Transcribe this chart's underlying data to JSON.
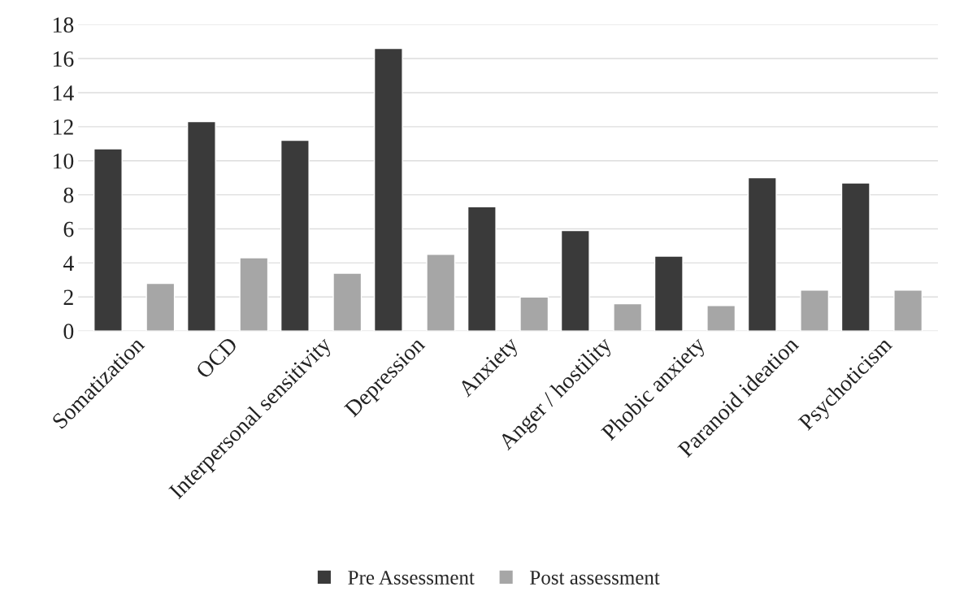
{
  "chart_data": {
    "type": "bar",
    "categories": [
      "Somatization",
      "OCD",
      "Interpersonal sensitivity",
      "Depression",
      "Anxiety",
      "Anger / hostility",
      "Phobic anxiety",
      "Paranoid ideation",
      "Psychoticism"
    ],
    "series": [
      {
        "name": "Pre Assessment",
        "color": "#3a3a3a",
        "values": [
          10.7,
          12.3,
          11.2,
          16.6,
          7.3,
          5.9,
          4.4,
          9.0,
          8.7
        ]
      },
      {
        "name": "Post assessment",
        "color": "#a6a6a6",
        "values": [
          2.8,
          4.3,
          3.4,
          4.5,
          2.0,
          1.6,
          1.5,
          2.4,
          2.4
        ]
      }
    ],
    "ylim": [
      0,
      18
    ],
    "yticks": [
      0,
      2,
      4,
      6,
      8,
      10,
      12,
      14,
      16,
      18
    ],
    "grid": "y",
    "legend": "bottom"
  }
}
